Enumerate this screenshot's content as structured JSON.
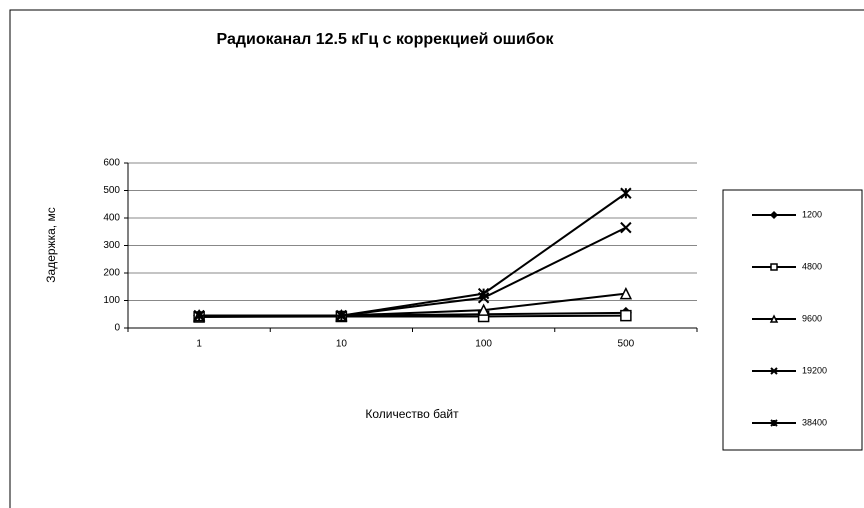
{
  "chart_data": {
    "type": "line",
    "title": "Радиоканал 12.5 кГц с коррекцией ошибок",
    "x_label": "Количество байт",
    "y_label": "Задержка, мс",
    "categories": [
      "1",
      "10",
      "100",
      "500"
    ],
    "series": [
      {
        "name": "1200",
        "color": "#000000",
        "marker": "diamond",
        "values": [
          45,
          45,
          50,
          55
        ]
      },
      {
        "name": "4800",
        "color": "#000000",
        "marker": "square",
        "values": [
          40,
          42,
          42,
          45
        ]
      },
      {
        "name": "9600",
        "color": "#000000",
        "marker": "triangle",
        "values": [
          45,
          45,
          65,
          125
        ]
      },
      {
        "name": "19200",
        "color": "#000000",
        "marker": "x",
        "values": [
          45,
          45,
          110,
          365
        ]
      },
      {
        "name": "38400",
        "color": "#000000",
        "marker": "star",
        "values": [
          45,
          45,
          125,
          490
        ]
      }
    ],
    "ylim": [
      0,
      600
    ],
    "yticks": [
      0,
      100,
      200,
      300,
      400,
      500,
      600
    ],
    "grid": true,
    "legend": "right"
  }
}
